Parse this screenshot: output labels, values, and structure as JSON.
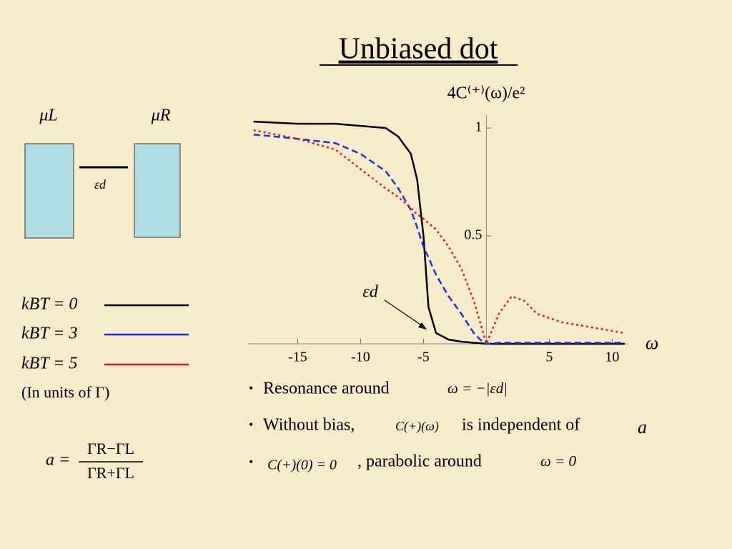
{
  "slide": {
    "title": "Unbiased dot",
    "diagram": {
      "left_label": "μL",
      "right_label": "μR",
      "level_label": "εd"
    },
    "units_note": "(In units of Γ)",
    "formula": {
      "lhs": "a =",
      "numerator": "ΓR−ΓL",
      "denominator": "ΓR+ΓL"
    },
    "bullets": [
      [
        "Resonance around",
        "ω = −|εd|"
      ],
      [
        "Without bias,",
        "C(+)(ω)",
        "is independent of",
        "a"
      ],
      [
        "C(+)(0) = 0",
        ", parabolic around",
        "ω = 0"
      ]
    ],
    "bullet_mark": "•"
  },
  "chart_data": {
    "type": "line",
    "ylabel": "4C⁽⁺⁾(ω)/e²",
    "xlabel": "ω",
    "annotation": "εd",
    "x": [
      -18.5,
      -15,
      -12,
      -10,
      -8,
      -7,
      -6,
      -5.5,
      -5,
      -4.6,
      -4,
      -3,
      -2,
      -1,
      -0.5,
      0,
      1,
      2,
      3,
      4,
      5,
      6,
      8,
      11
    ],
    "series": [
      {
        "name": "kBT = 0",
        "color": "#000000",
        "dash": "solid",
        "values": [
          1.03,
          1.02,
          1.02,
          1.01,
          1.0,
          0.96,
          0.88,
          0.76,
          0.5,
          0.17,
          0.05,
          0.02,
          0.01,
          0.005,
          0.003,
          0,
          0,
          0,
          0,
          0,
          0,
          0,
          0,
          0
        ]
      },
      {
        "name": "kBT = 3",
        "color": "#1a2ee6",
        "dash": "dashed",
        "values": [
          0.97,
          0.95,
          0.93,
          0.88,
          0.8,
          0.72,
          0.62,
          0.54,
          0.45,
          0.4,
          0.32,
          0.22,
          0.14,
          0.05,
          0.02,
          0,
          0.005,
          0.005,
          0.005,
          0.005,
          0.005,
          0.005,
          0.005,
          0.005
        ]
      },
      {
        "name": "kBT = 5",
        "color": "#e21a1a",
        "dash": "dotted",
        "values": [
          0.99,
          0.95,
          0.9,
          0.81,
          0.72,
          0.68,
          0.63,
          0.6,
          0.58,
          0.56,
          0.53,
          0.45,
          0.35,
          0.2,
          0.1,
          0,
          0.14,
          0.22,
          0.2,
          0.14,
          0.12,
          0.1,
          0.08,
          0.05
        ]
      }
    ],
    "xlim": [
      -19,
      11
    ],
    "ylim": [
      0,
      1.06
    ],
    "xticks": [
      -15,
      -10,
      -5,
      5,
      10
    ],
    "yticks": [
      0.5,
      1
    ]
  }
}
